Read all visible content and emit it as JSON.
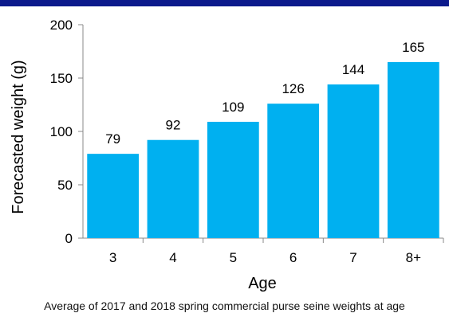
{
  "chart_data": {
    "type": "bar",
    "categories": [
      "3",
      "4",
      "5",
      "6",
      "7",
      "8+"
    ],
    "values": [
      79,
      92,
      109,
      126,
      144,
      165
    ],
    "data_labels": [
      "79",
      "92",
      "109",
      "126",
      "144",
      "165"
    ],
    "xlabel": "Age",
    "ylabel": "Forecasted weight (g)",
    "ylim": [
      0,
      200
    ],
    "yticks": [
      "0",
      "50",
      "100",
      "150",
      "200"
    ],
    "grid": false,
    "bar_color": "#00b0f0"
  },
  "caption": "Average of 2017 and 2018 spring commercial purse seine weights at age",
  "colors": {
    "top_bar": "#0c1a8c",
    "bar": "#00b0f0"
  }
}
